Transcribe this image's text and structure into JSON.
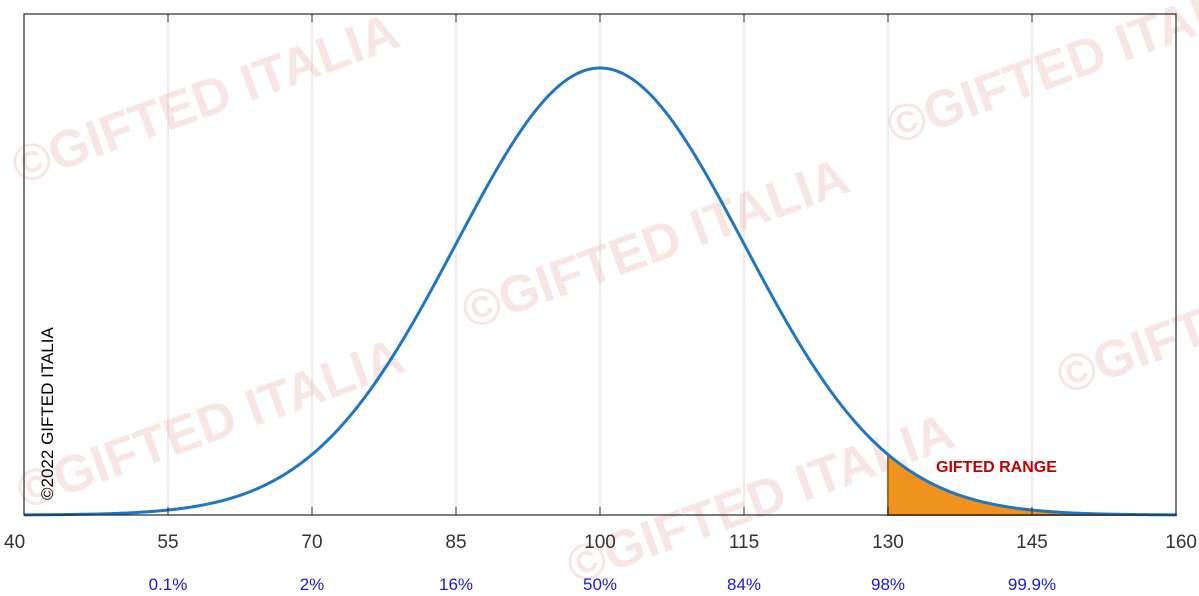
{
  "watermark": "©GIFTED ITALIA",
  "copyright": "©2022 GIFTED ITALIA",
  "colors": {
    "curve": "#1f77c4",
    "fill": "#f0921e",
    "fill_edge": "#a86a15",
    "annotation": "#c00000",
    "percentile": "#1a1ad6",
    "grid": "#d9d9d9"
  },
  "chart_data": {
    "type": "area",
    "distribution": {
      "kind": "normal",
      "mean": 100,
      "sd": 15
    },
    "xlim": [
      40,
      160
    ],
    "x_ticks": [
      40,
      55,
      70,
      85,
      100,
      115,
      130,
      145,
      160
    ],
    "tick_labels": [
      "40",
      "55",
      "70",
      "85",
      "100",
      "115",
      "130",
      "145",
      "160"
    ],
    "percentiles": [
      {
        "x": 55,
        "label": "0.1%"
      },
      {
        "x": 70,
        "label": "2%"
      },
      {
        "x": 85,
        "label": "16%"
      },
      {
        "x": 100,
        "label": "50%"
      },
      {
        "x": 115,
        "label": "84%"
      },
      {
        "x": 130,
        "label": "98%"
      },
      {
        "x": 145,
        "label": "99.9%"
      }
    ],
    "shaded_region": {
      "from": 130,
      "to": 160,
      "label": "GIFTED RANGE"
    },
    "grid": true
  }
}
